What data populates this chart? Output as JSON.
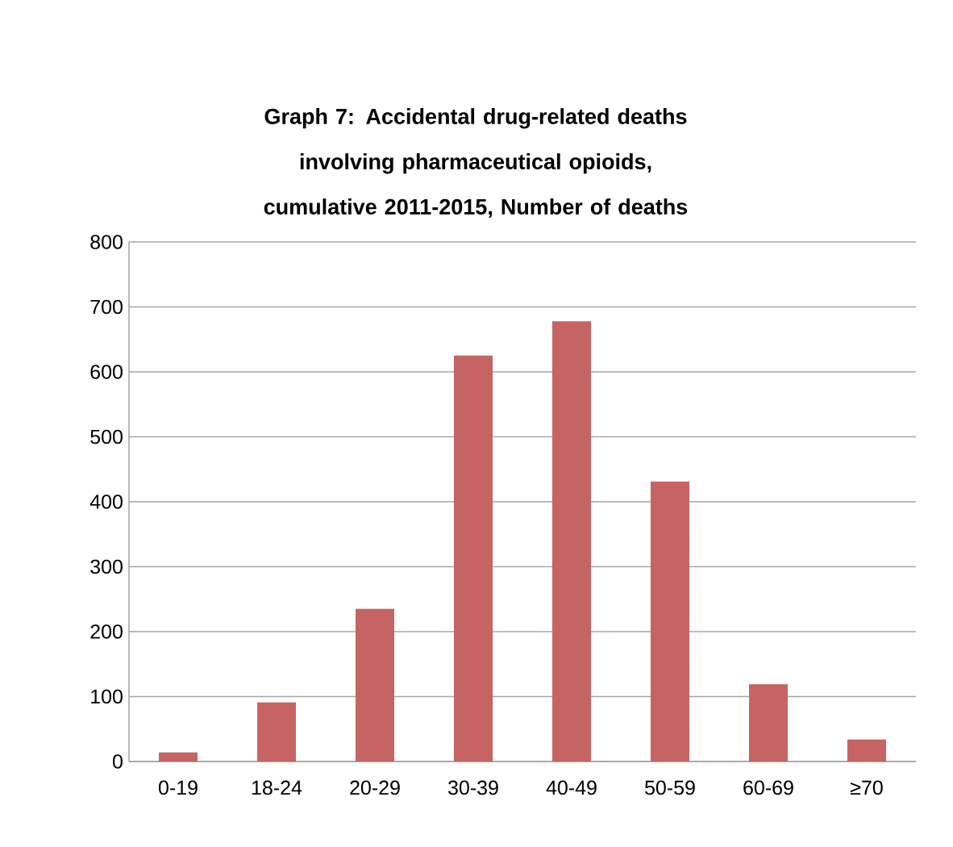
{
  "chart_data": {
    "type": "bar",
    "title": "Graph 7: Accidental drug-related deaths involving pharmaceutical opioids, cumulative 2011-2015, Number of deaths",
    "categories": [
      "0-19",
      "18-24",
      "20-29",
      "30-39",
      "40-49",
      "50-59",
      "60-69",
      "≥70"
    ],
    "values": [
      14,
      91,
      235,
      625,
      678,
      431,
      119,
      34
    ],
    "color": "#c56462",
    "ylim": [
      0,
      800
    ],
    "yticks": [
      0,
      100,
      200,
      300,
      400,
      500,
      600,
      700,
      800
    ],
    "grid": "y"
  }
}
